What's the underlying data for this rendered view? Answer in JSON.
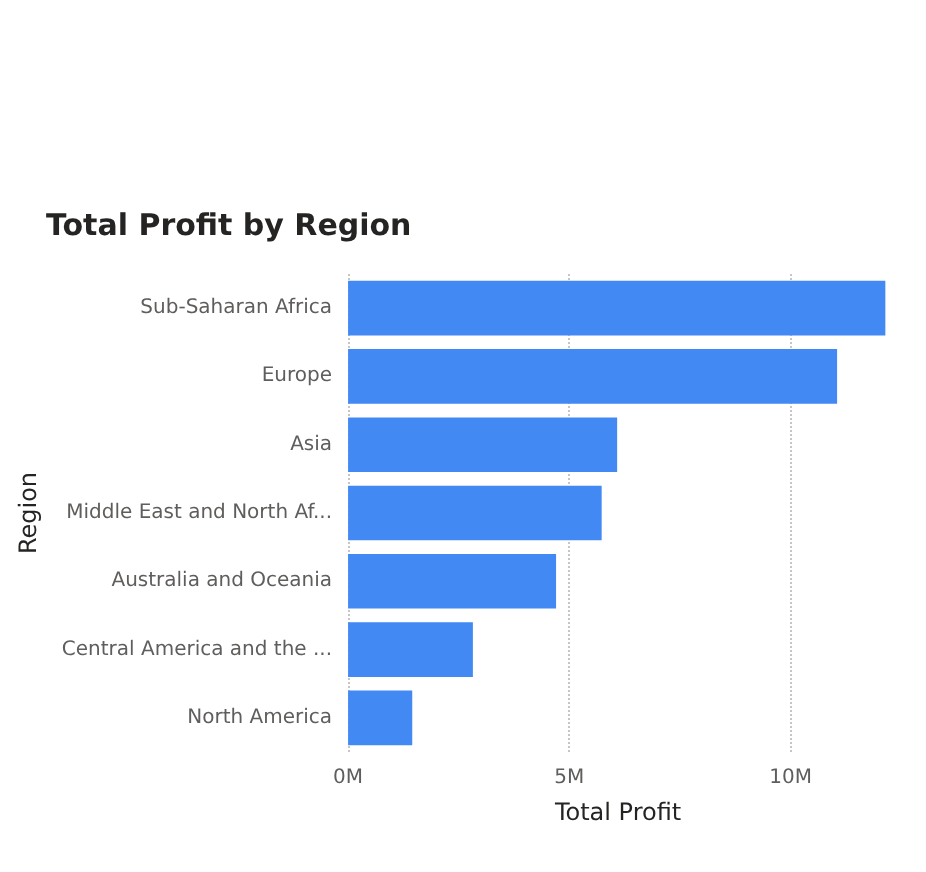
{
  "chart_data": {
    "type": "bar",
    "orientation": "horizontal",
    "title": "Total Profit by Region",
    "xlabel": "Total Profit",
    "ylabel": "Region",
    "categories": [
      "Sub-Saharan Africa",
      "Europe",
      "Asia",
      "Middle East and North Af...",
      "Australia and Oceania",
      "Central America and the ...",
      "North America"
    ],
    "values": [
      12.14,
      11.05,
      6.08,
      5.73,
      4.7,
      2.82,
      1.45
    ],
    "color": "#4289f4",
    "xlim": [
      0,
      12.2
    ],
    "xticks": [
      {
        "value": 0,
        "label": "0M"
      },
      {
        "value": 5,
        "label": "5M"
      },
      {
        "value": 10,
        "label": "10M"
      }
    ],
    "grid": "x"
  }
}
